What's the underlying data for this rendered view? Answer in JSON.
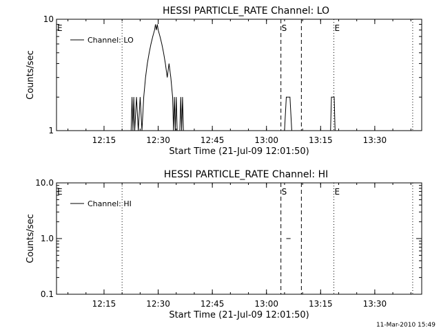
{
  "chart_data": [
    {
      "type": "line",
      "title": "HESSI PARTICLE_RATE Channel: LO",
      "xlabel": "Start Time (21-Jul-09 12:01:50)",
      "ylabel": "Counts/sec",
      "yscale": "log",
      "ylim": [
        1,
        10
      ],
      "yticks": [
        1,
        10
      ],
      "ytick_labels": [
        "1",
        "10"
      ],
      "xlim": [
        "12:01:50",
        "13:43:00"
      ],
      "xticks": [
        "12:15",
        "12:30",
        "12:45",
        "13:00",
        "13:15",
        "13:30"
      ],
      "grid": false,
      "legend_placement": "top-left",
      "series": [
        {
          "name": "Channel: LO",
          "x": [
            "12:22:30",
            "12:22:45",
            "12:23:00",
            "12:23:15",
            "12:23:30",
            "12:24:00",
            "12:24:30",
            "12:25:00",
            "12:25:30",
            "12:26:00",
            "12:26:30",
            "12:27:00",
            "12:27:30",
            "12:28:00",
            "12:28:30",
            "12:29:00",
            "12:29:15",
            "12:29:30",
            "12:29:45",
            "12:30:00",
            "12:30:30",
            "12:31:00",
            "12:31:30",
            "12:32:00",
            "12:32:30",
            "12:33:00",
            "12:33:30",
            "12:34:00",
            "12:34:15",
            "12:34:30",
            "12:34:45",
            "12:35:00",
            "12:35:15",
            "12:36:00",
            "12:36:15",
            "12:36:30",
            "12:36:45",
            "12:37:00",
            "13:05:00",
            "13:05:30",
            "13:06:30",
            "13:07:00",
            "13:17:45",
            "13:18:00",
            "13:18:45",
            "13:19:00"
          ],
          "y": [
            1,
            2,
            1,
            2,
            1,
            2,
            1,
            2,
            1,
            2,
            3,
            4,
            5,
            6,
            7,
            8,
            9,
            8,
            9,
            8,
            7,
            6,
            5,
            4,
            3,
            4,
            3,
            2,
            1,
            2,
            1,
            2,
            1,
            1,
            2,
            1,
            2,
            1,
            1,
            2,
            2,
            1,
            1,
            2,
            2,
            1
          ]
        }
      ],
      "markers": [
        {
          "label": "E",
          "time": "12:01:50",
          "style": "dotted"
        },
        {
          "label": "",
          "time": "12:20:00",
          "style": "dotted"
        },
        {
          "label": "S",
          "time": "13:04:00",
          "style": "dashed"
        },
        {
          "label": "",
          "time": "13:09:40",
          "style": "dashed"
        },
        {
          "label": "E",
          "time": "13:18:40",
          "style": "dotted"
        },
        {
          "label": "",
          "time": "13:40:30",
          "style": "dotted"
        }
      ]
    },
    {
      "type": "line",
      "title": "HESSI PARTICLE_RATE Channel: HI",
      "xlabel": "Start Time (21-Jul-09 12:01:50)",
      "ylabel": "Counts/sec",
      "yscale": "log",
      "ylim": [
        0.1,
        10
      ],
      "yticks": [
        0.1,
        1,
        10
      ],
      "ytick_labels": [
        "0.1",
        "1.0",
        "10.0"
      ],
      "xlim": [
        "12:01:50",
        "13:43:00"
      ],
      "xticks": [
        "12:15",
        "12:30",
        "12:45",
        "13:00",
        "13:15",
        "13:30"
      ],
      "grid": false,
      "legend_placement": "top-left",
      "series": [
        {
          "name": "Channel: HI",
          "x": [
            "13:05:30",
            "13:06:40"
          ],
          "y": [
            1,
            1
          ]
        }
      ],
      "markers": [
        {
          "label": "E",
          "time": "12:01:50",
          "style": "dotted"
        },
        {
          "label": "",
          "time": "12:20:00",
          "style": "dotted"
        },
        {
          "label": "S",
          "time": "13:04:00",
          "style": "dashed"
        },
        {
          "label": "",
          "time": "13:09:40",
          "style": "dashed"
        },
        {
          "label": "E",
          "time": "13:18:40",
          "style": "dotted"
        },
        {
          "label": "",
          "time": "13:40:30",
          "style": "dotted"
        }
      ]
    }
  ],
  "footer": {
    "timestamp": "11-Mar-2010 15:49"
  }
}
